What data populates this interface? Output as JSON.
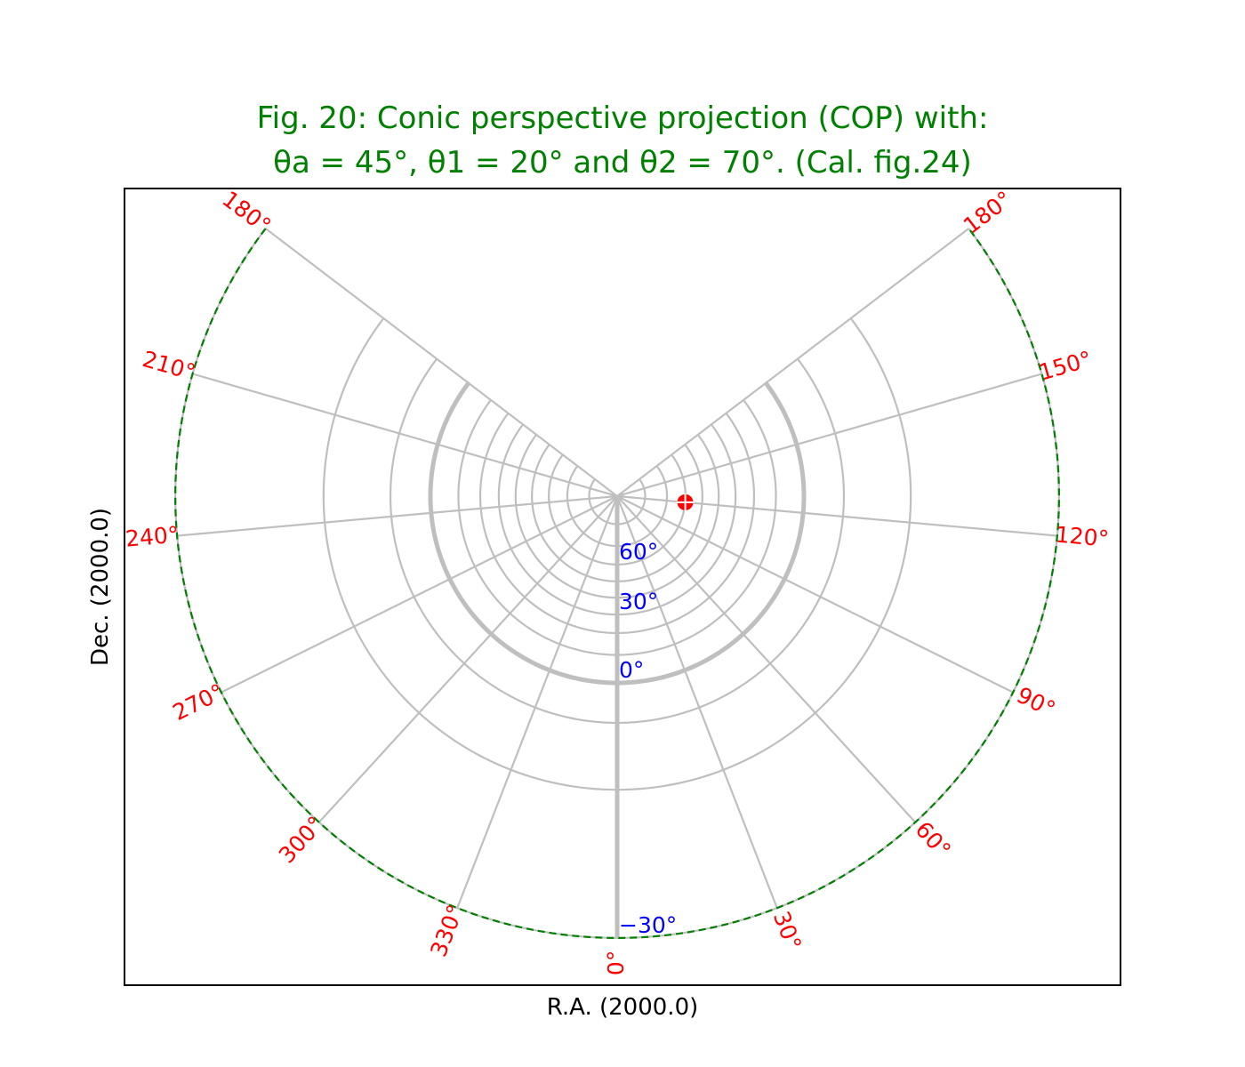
{
  "chart_data": {
    "type": "scatter",
    "projection": "COP",
    "title_line1": "Fig. 20: Conic perspective projection (COP) with:",
    "title_line2": "θa = 45°, θ1 = 20° and θ2 = 70°. (Cal. fig.24)",
    "title_color": "#008000",
    "xlabel": "R.A. (2000.0)",
    "ylabel": "Dec. (2000.0)",
    "theta_a": 45,
    "theta_1": 20,
    "theta_2": 70,
    "ra_ticks": [
      "180°",
      "150°",
      "120°",
      "90°",
      "60°",
      "30°",
      "0°",
      "330°",
      "300°",
      "270°",
      "240°",
      "210°",
      "180°"
    ],
    "ra_tick_values": [
      180,
      150,
      120,
      90,
      60,
      30,
      0,
      -30,
      -60,
      -90,
      -120,
      -150,
      -180
    ],
    "ra_tick_color": "#ff0000",
    "dec_ticks": [
      "60°",
      "30°",
      "0°",
      "−30°"
    ],
    "dec_tick_values": [
      60,
      30,
      0,
      -30
    ],
    "dec_tick_color": "#0000ff",
    "graticule_dec": [
      80,
      70,
      60,
      50,
      40,
      30,
      20,
      10,
      0,
      -10,
      -20,
      -30
    ],
    "graticule_ra": [
      180,
      150,
      120,
      90,
      60,
      30,
      0,
      -30,
      -60,
      -90,
      -120,
      -150,
      -180
    ],
    "highlighted_dec": [
      0
    ],
    "highlighted_ra": [
      0
    ],
    "grid_color": "#bfbfbf",
    "border_color": "#008000",
    "points": [
      {
        "ra": 120,
        "dec": 60,
        "color": "#ff0000"
      }
    ]
  }
}
